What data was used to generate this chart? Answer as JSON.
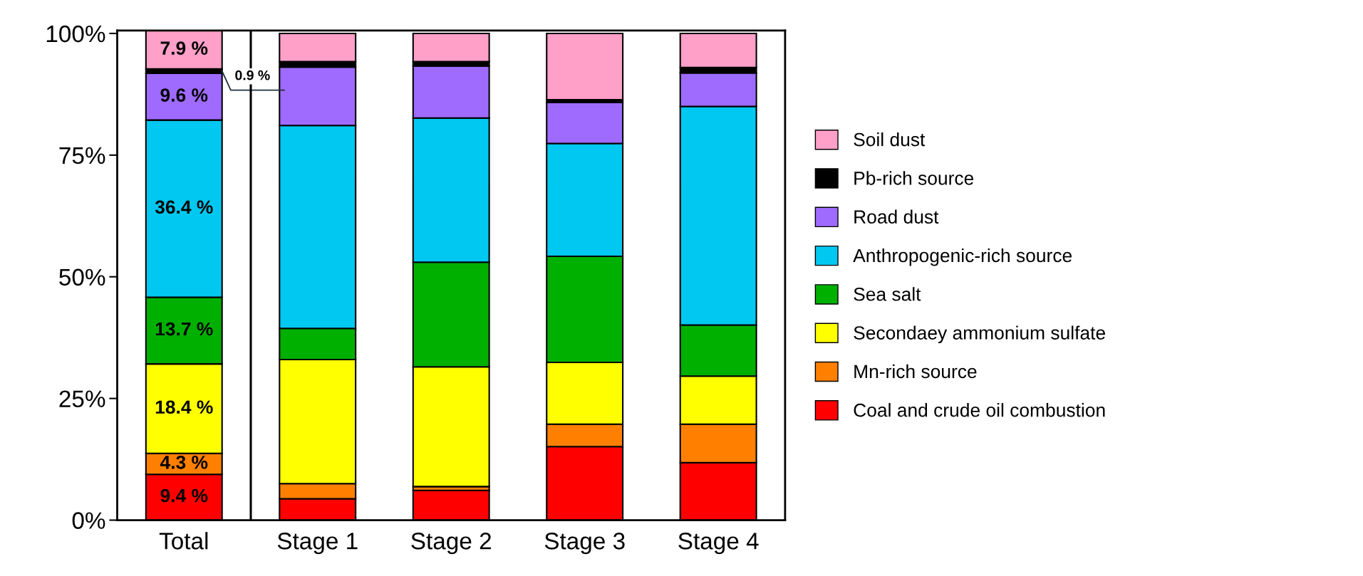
{
  "chart_data": {
    "type": "bar",
    "stacked": true,
    "categories": [
      "Total",
      "Stage 1",
      "Stage 2",
      "Stage 3",
      "Stage 4"
    ],
    "series": [
      {
        "name": "Coal and crude oil combustion",
        "color": "#ff0000",
        "values": [
          9.4,
          4.4,
          6.1,
          15.1,
          11.8
        ],
        "value_labels": [
          "9.4 %",
          null,
          null,
          null,
          null
        ]
      },
      {
        "name": "Mn-rich source",
        "color": "#ff8000",
        "values": [
          4.3,
          3.1,
          0.8,
          4.6,
          7.9
        ],
        "value_labels": [
          "4.3 %",
          null,
          null,
          null,
          null
        ]
      },
      {
        "name": "Secondaey ammonium sulfate",
        "color": "#ffff00",
        "values": [
          18.4,
          25.5,
          24.6,
          12.7,
          9.9
        ],
        "value_labels": [
          "18.4 %",
          null,
          null,
          null,
          null
        ]
      },
      {
        "name": "Sea salt",
        "color": "#00b000",
        "values": [
          13.7,
          6.4,
          21.5,
          21.8,
          10.5
        ],
        "value_labels": [
          "13.7 %",
          null,
          null,
          null,
          null
        ]
      },
      {
        "name": "Anthropogenic-rich source",
        "color": "#00c8f0",
        "values": [
          36.4,
          41.7,
          29.6,
          23.2,
          44.9
        ],
        "value_labels": [
          "36.4 %",
          null,
          null,
          null,
          null
        ]
      },
      {
        "name": "Road dust",
        "color": "#9f6bff",
        "values": [
          9.6,
          12.0,
          10.7,
          8.4,
          6.9
        ],
        "value_labels": [
          "9.6 %",
          null,
          null,
          null,
          null
        ]
      },
      {
        "name": "Pb-rich source",
        "color": "#000000",
        "values": [
          0.9,
          1.1,
          0.9,
          0.6,
          1.1
        ],
        "value_labels": [
          "0.9 %",
          null,
          null,
          null,
          null
        ]
      },
      {
        "name": "Soil dust",
        "color": "#ffa0c8",
        "values": [
          7.9,
          5.8,
          5.8,
          13.6,
          7.0
        ],
        "value_labels": [
          "7.9 %",
          null,
          null,
          null,
          null
        ]
      }
    ],
    "ylim": [
      0,
      100.6
    ],
    "yticks": [
      {
        "value": 0,
        "label": "0%"
      },
      {
        "value": 25,
        "label": "25%"
      },
      {
        "value": 50,
        "label": "50%"
      },
      {
        "value": 75,
        "label": "75%"
      },
      {
        "value": 100,
        "label": "100%"
      }
    ],
    "grid": false,
    "legend": "right"
  }
}
